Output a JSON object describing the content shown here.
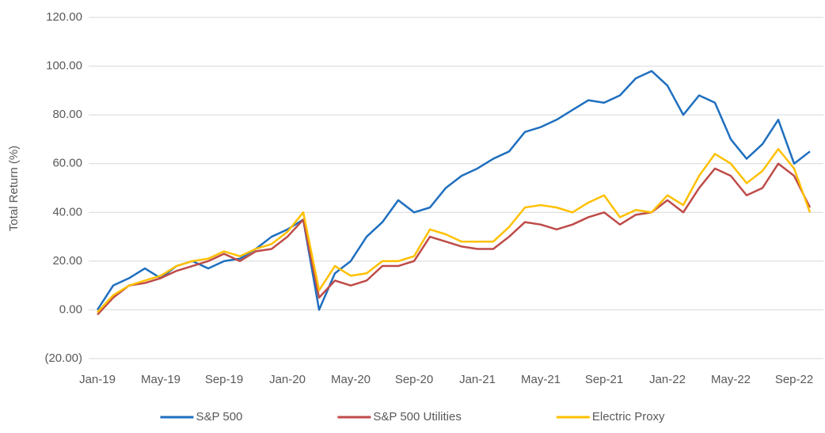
{
  "chart_data": {
    "type": "line",
    "y_label": "Total Return (%)",
    "categories": [
      "Jan-19",
      null,
      null,
      null,
      "May-19",
      null,
      null,
      null,
      "Sep-19",
      null,
      null,
      null,
      "Jan-20",
      null,
      null,
      null,
      "May-20",
      null,
      null,
      null,
      "Sep-20",
      null,
      null,
      null,
      "Jan-21",
      null,
      null,
      null,
      "May-21",
      null,
      null,
      null,
      "Sep-21",
      null,
      null,
      null,
      "Jan-22",
      null,
      null,
      null,
      "May-22",
      null,
      null,
      null,
      "Sep-22",
      null
    ],
    "series": [
      {
        "name": "S&P 500",
        "color": "#1f6fbf",
        "values": [
          0,
          10,
          13,
          17,
          13,
          18,
          20,
          17,
          20,
          21,
          25,
          30,
          33,
          37,
          0,
          15,
          20,
          30,
          36,
          45,
          40,
          42,
          50,
          55,
          58,
          62,
          65,
          73,
          75,
          78,
          82,
          86,
          85,
          88,
          95,
          98,
          92,
          80,
          88,
          85,
          70,
          62,
          68,
          78,
          60,
          65
        ]
      },
      {
        "name": "S&P 500 Utilities",
        "color": "#be4b48",
        "values": [
          -2,
          5,
          10,
          11,
          13,
          16,
          18,
          20,
          23,
          20,
          24,
          25,
          30,
          37,
          5,
          12,
          10,
          12,
          18,
          18,
          20,
          30,
          28,
          26,
          25,
          25,
          30,
          36,
          35,
          33,
          35,
          38,
          40,
          35,
          39,
          40,
          45,
          40,
          50,
          58,
          55,
          47,
          50,
          60,
          55,
          42
        ]
      },
      {
        "name": "Electric Proxy",
        "color": "#ffc000",
        "values": [
          -1,
          6,
          10,
          12,
          14,
          18,
          20,
          21,
          24,
          22,
          25,
          27,
          32,
          40,
          8,
          18,
          14,
          15,
          20,
          20,
          22,
          33,
          31,
          28,
          28,
          28,
          34,
          42,
          43,
          42,
          40,
          44,
          47,
          38,
          41,
          40,
          47,
          43,
          55,
          64,
          60,
          52,
          57,
          66,
          58,
          40
        ]
      }
    ],
    "ylim": [
      -20,
      120
    ],
    "yticks": [
      {
        "value": -20,
        "label": "(20.00)"
      },
      {
        "value": 0,
        "label": "0.00"
      },
      {
        "value": 20,
        "label": "20.00"
      },
      {
        "value": 40,
        "label": "40.00"
      },
      {
        "value": 60,
        "label": "60.00"
      },
      {
        "value": 80,
        "label": "80.00"
      },
      {
        "value": 100,
        "label": "100.00"
      },
      {
        "value": 120,
        "label": "120.00"
      }
    ],
    "grid": true,
    "legend": "bottom"
  }
}
